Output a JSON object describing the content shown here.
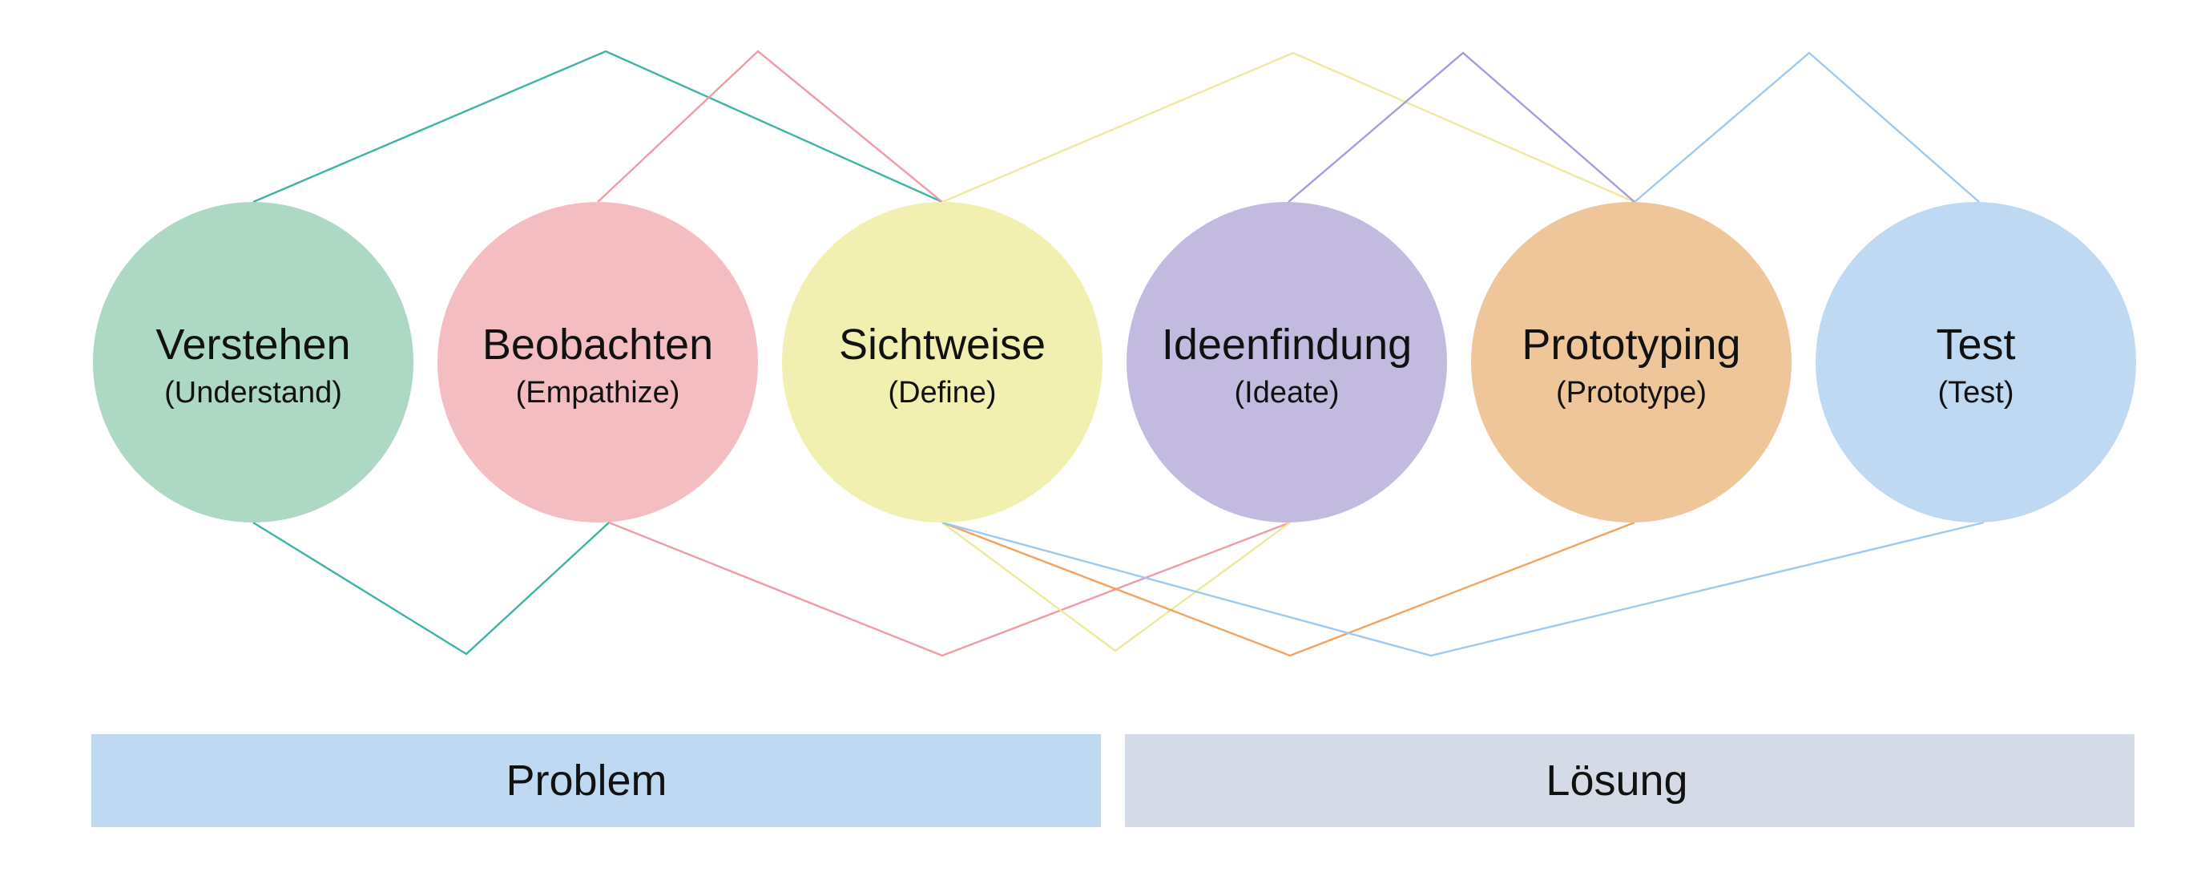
{
  "stages": [
    {
      "title": "Verstehen",
      "subtitle": "(Understand)",
      "color": "#acd8c4",
      "line_color": "#3fb3a6"
    },
    {
      "title": "Beobachten",
      "subtitle": "(Empathize)",
      "color": "#f4bdc2",
      "line_color": "#f29aa6"
    },
    {
      "title": "Sichtweise",
      "subtitle": "(Define)",
      "color": "#f1f0b1",
      "line_color": "#eeea9a"
    },
    {
      "title": "Ideenfindung",
      "subtitle": "(Ideate)",
      "color": "#c2bbdf",
      "line_color": "#a79be0"
    },
    {
      "title": "Prototyping",
      "subtitle": "(Prototype)",
      "color": "#eec699",
      "line_color": "#f2a35e"
    },
    {
      "title": "Test",
      "subtitle": "(Test)",
      "color": "#bed9f1",
      "line_color": "#9fcaf0"
    }
  ],
  "bands": [
    {
      "label": "Problem",
      "color": "#bed9f1"
    },
    {
      "label": "Lösung",
      "color": "#d4dbe6"
    }
  ]
}
